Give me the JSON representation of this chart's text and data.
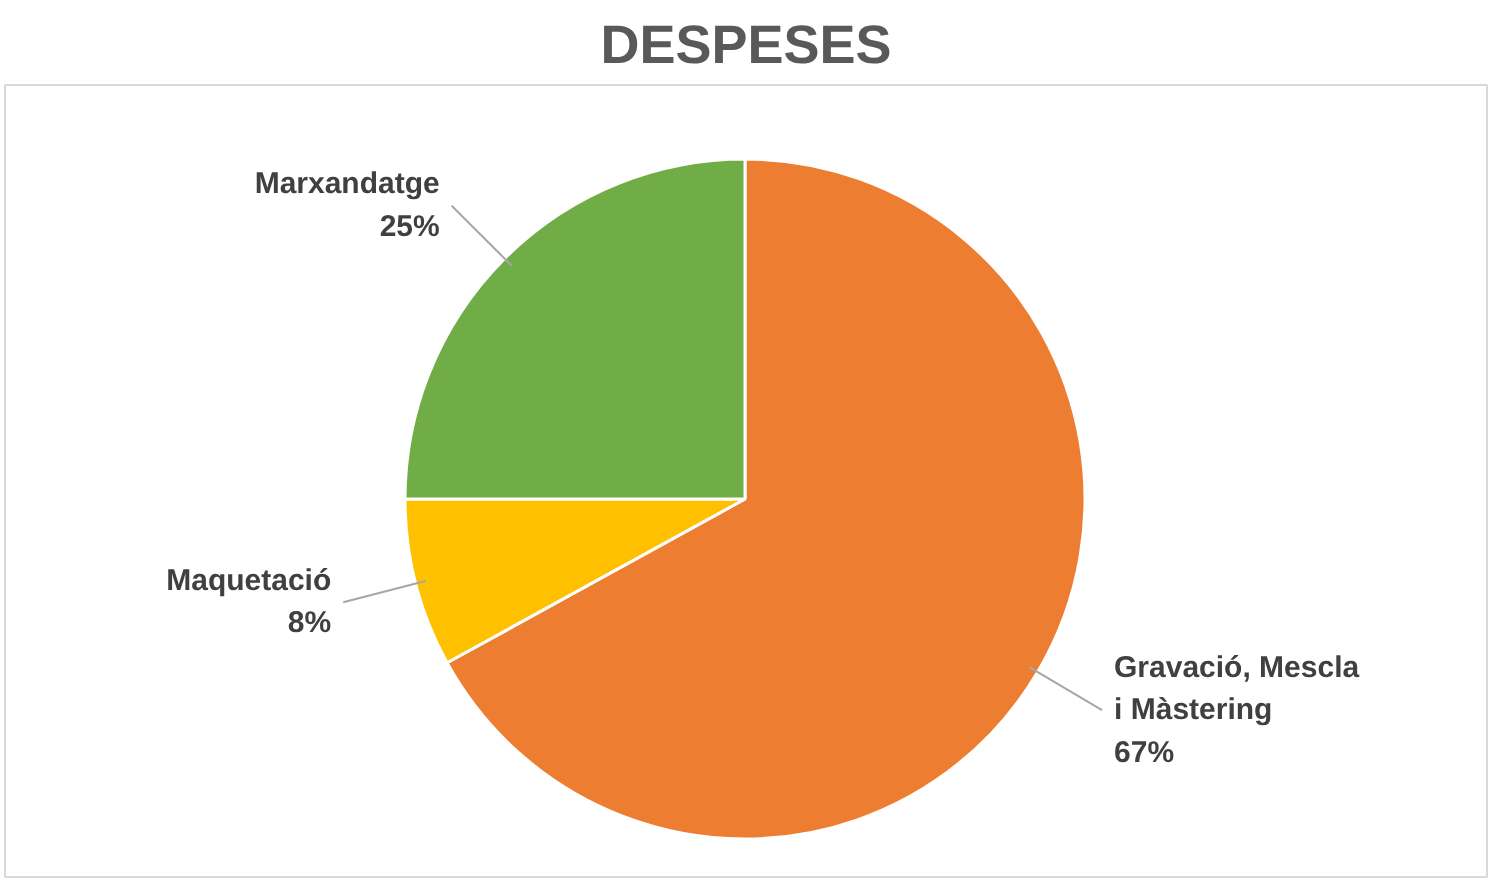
{
  "chart_data": {
    "type": "pie",
    "title": "DESPESES",
    "categories": [
      "Gravació, Mescla i Màstering",
      "Maquetació",
      "Marxandatge"
    ],
    "values": [
      67,
      8,
      25
    ],
    "colors": [
      "#ed7d31",
      "#ffc000",
      "#70ad47"
    ],
    "value_labels": [
      "67%",
      "8%",
      "25%"
    ]
  }
}
